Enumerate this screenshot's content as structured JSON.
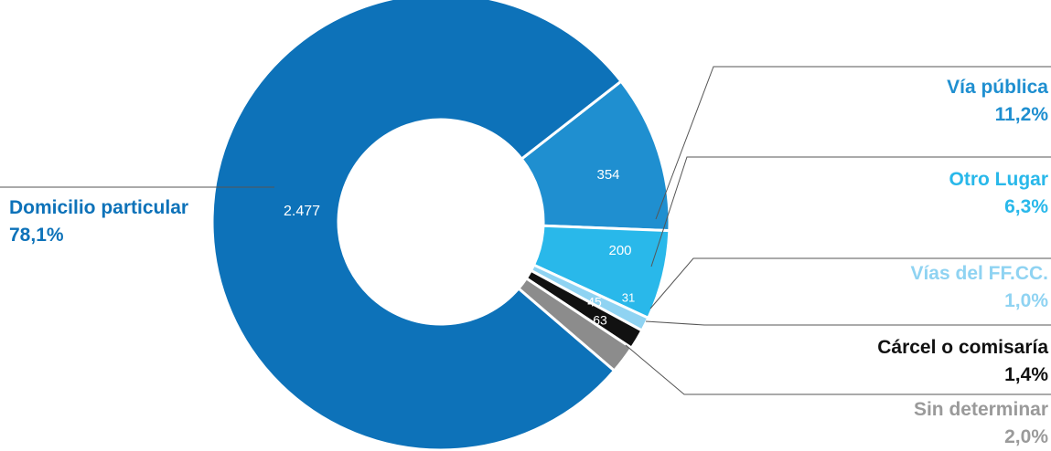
{
  "chart_data": {
    "type": "pie",
    "variant": "donut",
    "slices": [
      {
        "name": "Domicilio particular",
        "value": 2477,
        "value_label": "2.477",
        "percent_label": "78,1%",
        "color": "#0d72b9"
      },
      {
        "name": "Vía pública",
        "value": 354,
        "value_label": "354",
        "percent_label": "11,2%",
        "color": "#1f8fd0"
      },
      {
        "name": "Otro Lugar",
        "value": 200,
        "value_label": "200",
        "percent_label": "6,3%",
        "color": "#29b8ea"
      },
      {
        "name": "Vías del FF.CC.",
        "value": 31,
        "value_label": "31",
        "percent_label": "1,0%",
        "color": "#8fd3f2"
      },
      {
        "name": "Cárcel o comisaría",
        "value": 45,
        "value_label": "45",
        "percent_label": "1,4%",
        "color": "#111111"
      },
      {
        "name": "Sin determinar",
        "value": 63,
        "value_label": "63",
        "percent_label": "2,0%",
        "color": "#8c8c8c"
      }
    ],
    "label_colors": {
      "Domicilio particular": "#0d72b9",
      "Vía pública": "#1f8fd0",
      "Otro Lugar": "#29b8ea",
      "Vías del FF.CC.": "#8fd3f2",
      "Cárcel o comisaría": "#111111",
      "Sin determinar": "#9a9a9a"
    }
  }
}
